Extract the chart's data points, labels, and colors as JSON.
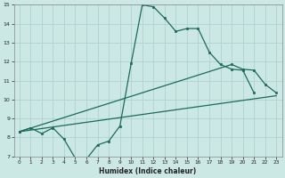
{
  "xlabel": "Humidex (Indice chaleur)",
  "xlim": [
    -0.5,
    23.5
  ],
  "ylim": [
    7,
    15
  ],
  "yticks": [
    7,
    8,
    9,
    10,
    11,
    12,
    13,
    14,
    15
  ],
  "xticks": [
    0,
    1,
    2,
    3,
    4,
    5,
    6,
    7,
    8,
    9,
    10,
    11,
    12,
    13,
    14,
    15,
    16,
    17,
    18,
    19,
    20,
    21,
    22,
    23
  ],
  "bg_color": "#cce8e5",
  "grid_color": "#aacfcc",
  "line_color": "#1a6b5a",
  "line1_x": [
    0,
    1,
    2,
    3,
    4,
    5,
    6,
    7,
    8,
    9,
    10,
    11,
    12,
    13,
    14,
    15,
    16,
    17,
    18,
    19,
    20,
    21
  ],
  "line1_y": [
    8.3,
    8.5,
    8.2,
    8.5,
    7.9,
    6.9,
    6.85,
    7.6,
    7.8,
    8.6,
    11.9,
    15.0,
    14.9,
    14.3,
    13.6,
    13.75,
    13.75,
    12.5,
    11.85,
    11.6,
    11.55,
    10.35
  ],
  "line2_x": [
    0,
    23
  ],
  "line2_y": [
    8.3,
    10.2
  ],
  "line3_x": [
    0,
    19,
    20,
    21,
    22,
    23
  ],
  "line3_y": [
    8.3,
    11.85,
    11.6,
    11.55,
    10.8,
    10.35
  ]
}
